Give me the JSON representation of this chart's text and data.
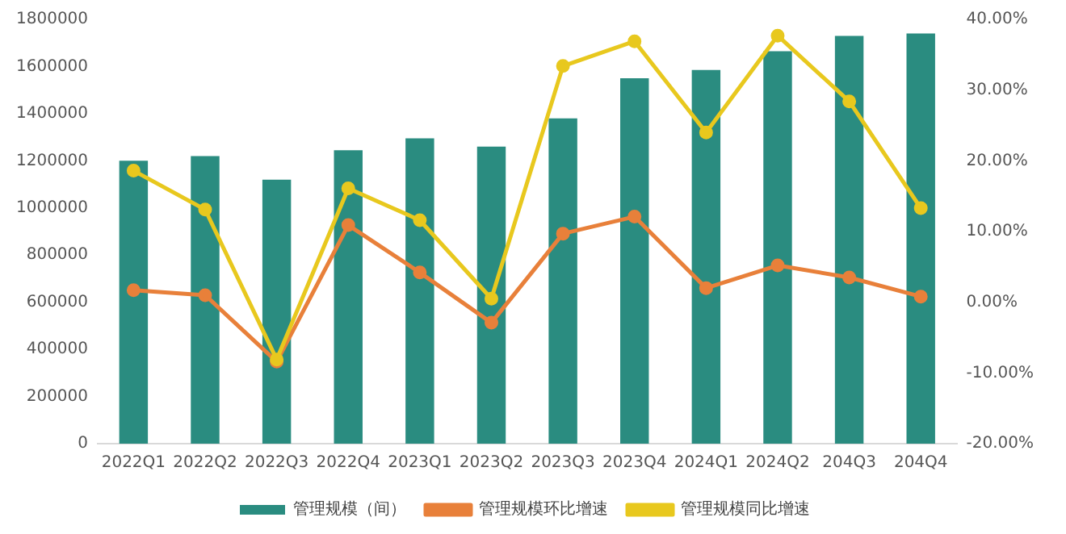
{
  "chart_data": {
    "type": "bar",
    "categories": [
      "2022Q1",
      "2022Q2",
      "2022Q3",
      "2022Q4",
      "2023Q1",
      "2023Q2",
      "2023Q3",
      "2023Q4",
      "2024Q1",
      "2024Q2",
      "204Q3",
      "204Q4"
    ],
    "series": [
      {
        "name": "管理规模（间）",
        "color": "#2a8c80",
        "values": [
          1200000,
          1220000,
          1120000,
          1245000,
          1295000,
          1260000,
          1380000,
          1550000,
          1585000,
          1665000,
          1730000,
          1740000
        ]
      },
      {
        "name": "管理规模环比增速",
        "type": "line",
        "axis": "y2",
        "color": "#e8803a",
        "values": [
          1.7,
          1.0,
          -8.4,
          10.9,
          4.2,
          -2.9,
          9.7,
          12.1,
          2.0,
          5.2,
          3.5,
          0.8
        ]
      },
      {
        "name": "管理规模同比增速",
        "type": "line",
        "axis": "y2",
        "color": "#e8c81e",
        "values": [
          18.6,
          13.1,
          -8.1,
          16.1,
          11.6,
          0.5,
          33.4,
          36.9,
          24.0,
          37.7,
          28.4,
          13.3
        ]
      }
    ],
    "ylim": [
      0,
      1800000
    ],
    "yticks": [
      0,
      200000,
      400000,
      600000,
      800000,
      1000000,
      1200000,
      1400000,
      1600000,
      1800000
    ],
    "y2lim": [
      -20,
      40
    ],
    "y2ticks": [
      {
        "value": -20,
        "label": "-20.00%"
      },
      {
        "value": -10,
        "label": "-10.00%"
      },
      {
        "value": 0,
        "label": "0.00%"
      },
      {
        "value": 10,
        "label": "10.00%"
      },
      {
        "value": 20,
        "label": "20.00%"
      },
      {
        "value": 30,
        "label": "30.00%"
      },
      {
        "value": 40,
        "label": "40.00%"
      }
    ],
    "grid": false,
    "legend": "bottom",
    "marker": "circle",
    "line_style": "solid"
  }
}
